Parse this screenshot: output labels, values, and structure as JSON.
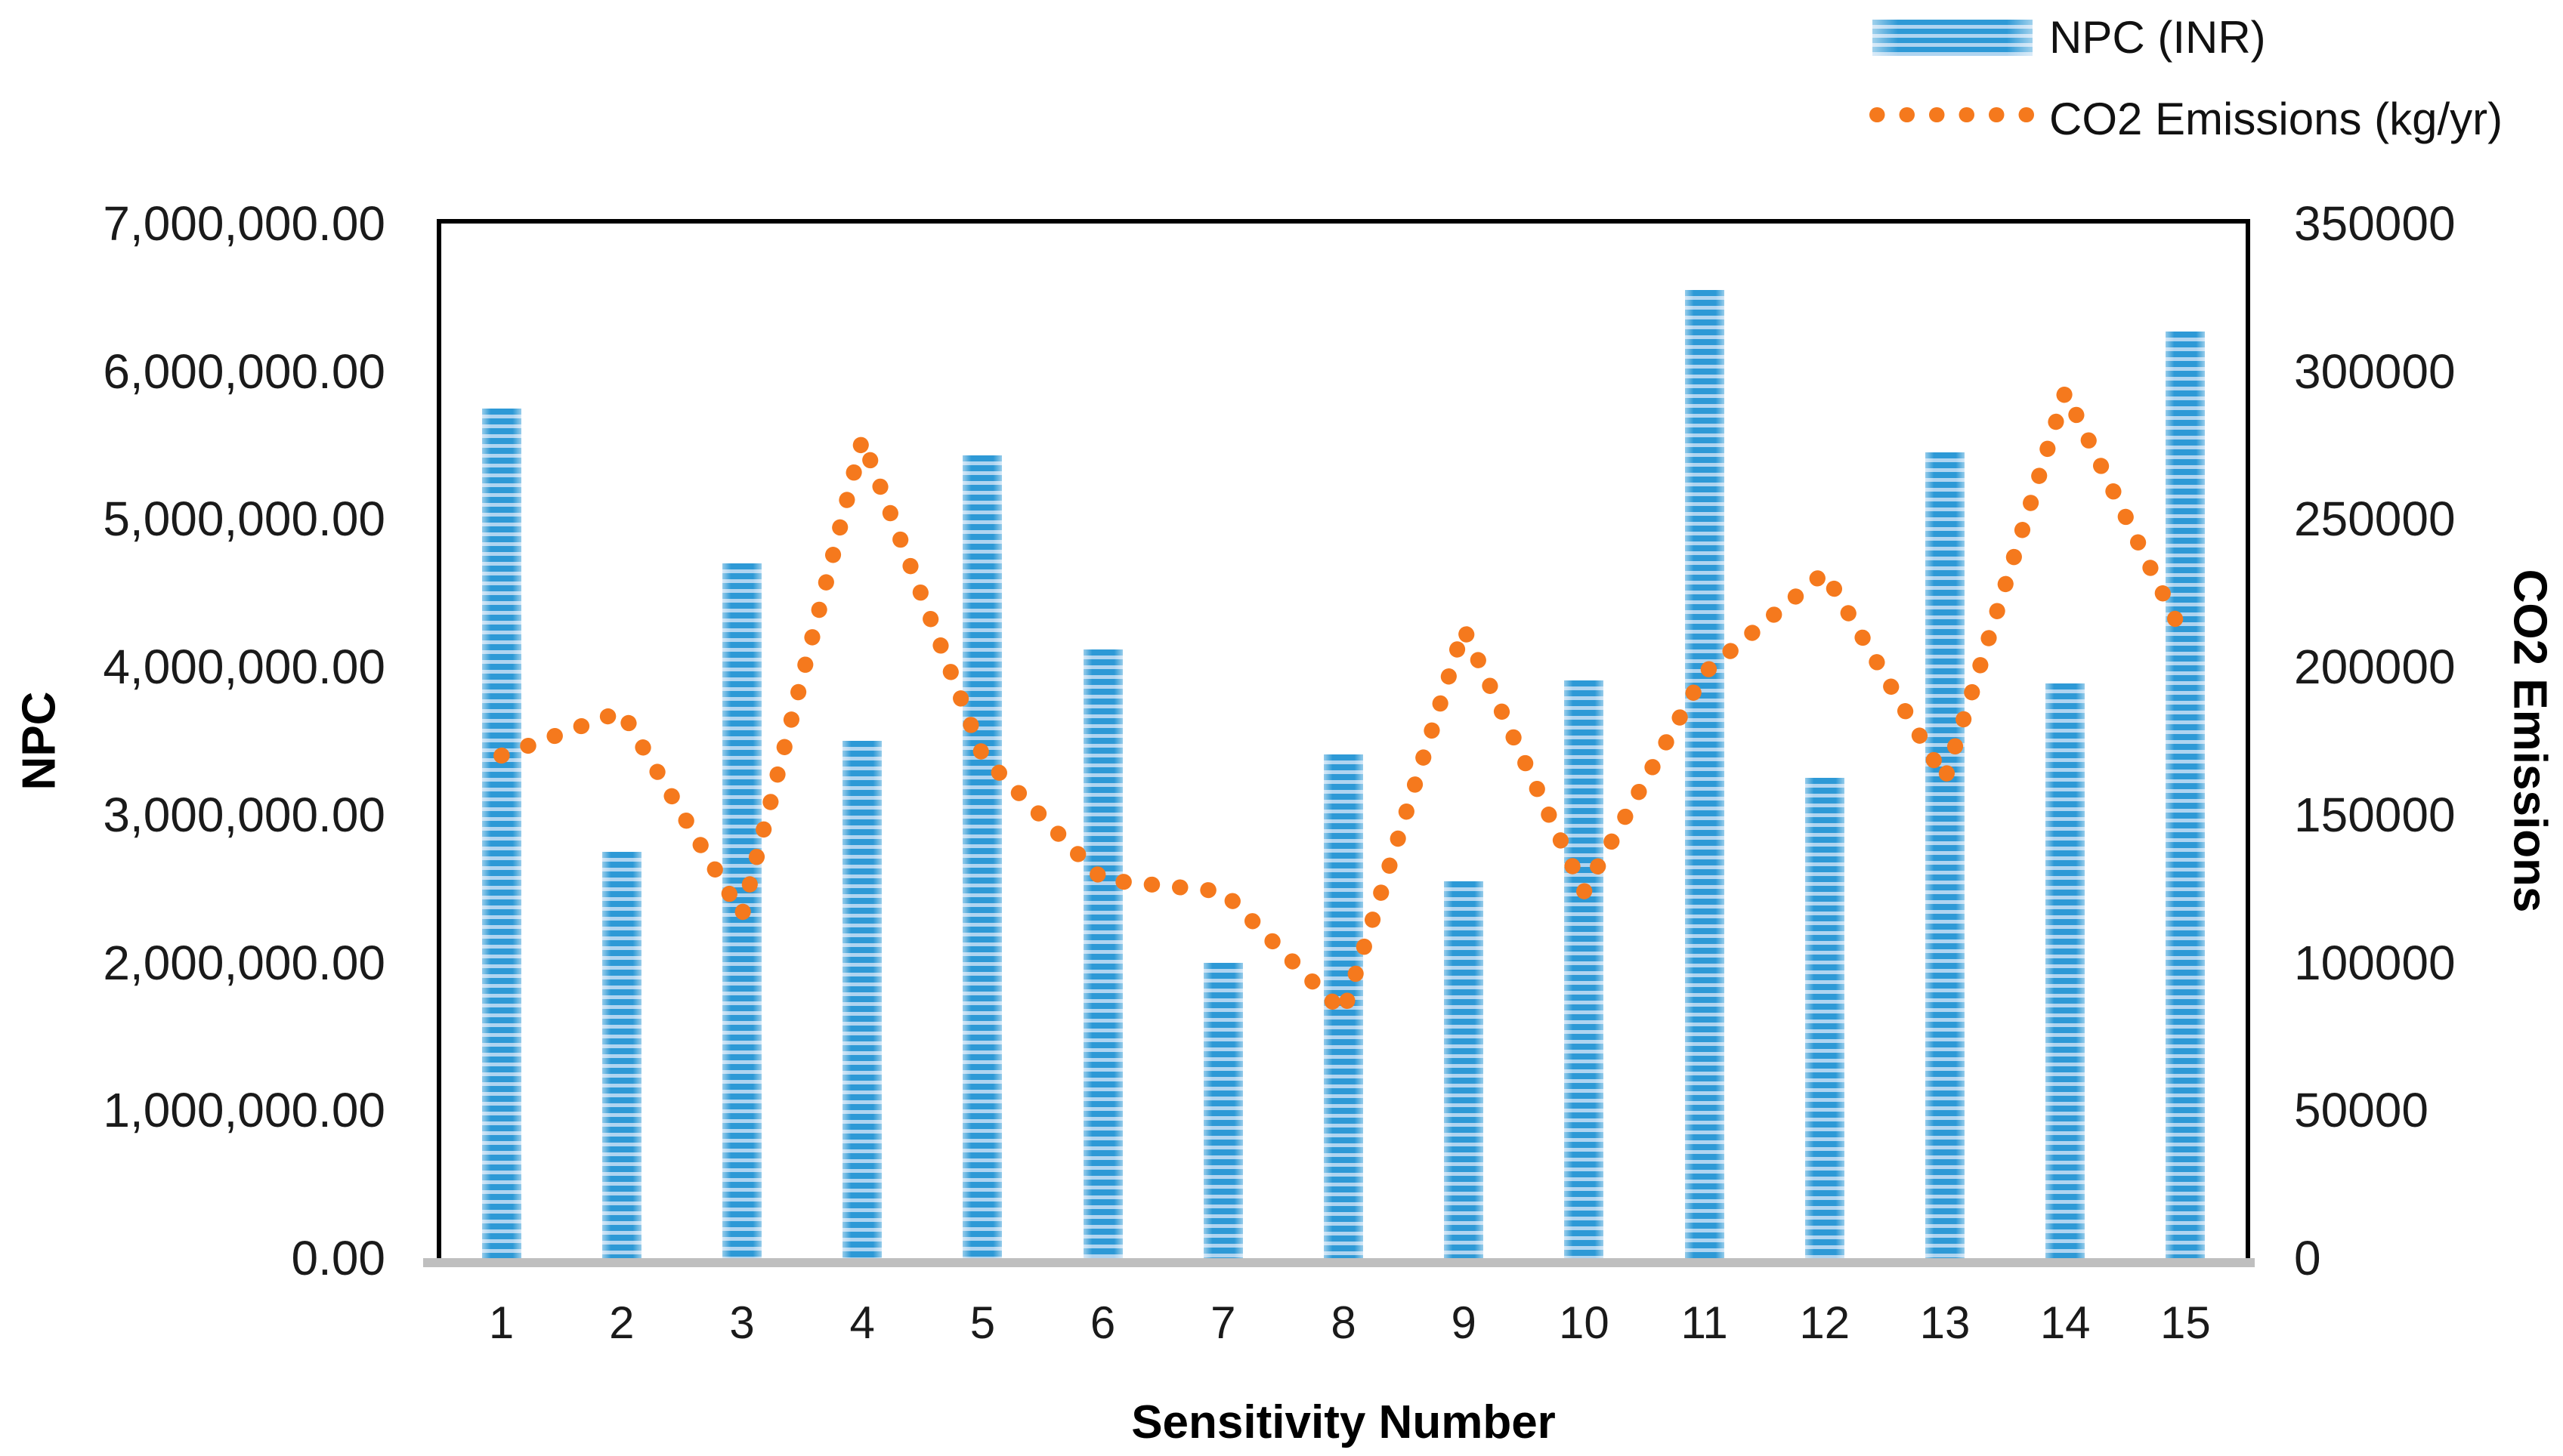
{
  "chart_data": {
    "type": "combo-bar-line",
    "categories": [
      "1",
      "2",
      "3",
      "4",
      "5",
      "6",
      "7",
      "8",
      "9",
      "10",
      "11",
      "12",
      "13",
      "14",
      "15"
    ],
    "series": [
      {
        "name": "NPC (INR)",
        "type": "bar",
        "axis": "left",
        "color_dark": "#2d99d6",
        "color_light": "#afd4f0",
        "values": [
          5750000,
          2750000,
          4700000,
          3500000,
          5430000,
          4120000,
          2000000,
          3410000,
          2550000,
          3910000,
          6550000,
          3250000,
          5450000,
          3890000,
          6270000
        ]
      },
      {
        "name": "CO2 Emissions (kg/yr)",
        "type": "dotted-line",
        "axis": "right",
        "color": "#f5791d",
        "values": [
          170000,
          185000,
          116000,
          277000,
          170000,
          128000,
          124000,
          83000,
          213000,
          124000,
          198000,
          232000,
          162000,
          293000,
          209000
        ]
      }
    ],
    "left_axis": {
      "title": "NPC",
      "min": 0,
      "max": 7000000,
      "step": 1000000,
      "tick_labels": [
        "0.00",
        "1,000,000.00",
        "2,000,000.00",
        "3,000,000.00",
        "4,000,000.00",
        "5,000,000.00",
        "6,000,000.00",
        "7,000,000.00"
      ]
    },
    "right_axis": {
      "title": "CO2 Emissions",
      "min": 0,
      "max": 350000,
      "step": 50000,
      "tick_labels": [
        "0",
        "50000",
        "100000",
        "150000",
        "200000",
        "250000",
        "300000",
        "350000"
      ]
    },
    "x_axis": {
      "title": "Sensitivity Number"
    },
    "legend": {
      "position": "top-right",
      "items": [
        {
          "label": "NPC (INR)",
          "swatch": "striped-bar"
        },
        {
          "label": "CO2 Emissions (kg/yr)",
          "swatch": "orange-dots"
        }
      ]
    },
    "colors": {
      "baseline": "#bfbfbf",
      "plot_border": "#000000",
      "text": "#1a1a1a"
    },
    "grid": "off"
  }
}
